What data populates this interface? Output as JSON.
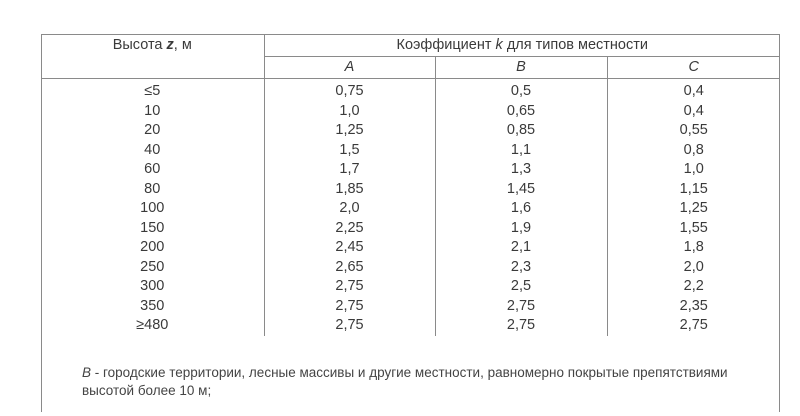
{
  "header": {
    "height_label_prefix": "Высота",
    "height_var": "z",
    "height_unit": ", м",
    "coef_label_prefix": "Коэффициент",
    "coef_var": "k",
    "coef_label_suffix": "для  типов местности",
    "terrain_types": [
      "A",
      "B",
      "C"
    ]
  },
  "rows": [
    {
      "height": "≤5",
      "a": "0,75",
      "b": "0,5",
      "c": "0,4"
    },
    {
      "height": "10",
      "a": "1,0",
      "b": "0,65",
      "c": "0,4"
    },
    {
      "height": "20",
      "a": "1,25",
      "b": "0,85",
      "c": "0,55"
    },
    {
      "height": "40",
      "a": "1,5",
      "b": "1,1",
      "c": "0,8"
    },
    {
      "height": "60",
      "a": "1,7",
      "b": "1,3",
      "c": "1,0"
    },
    {
      "height": "80",
      "a": "1,85",
      "b": "1,45",
      "c": "1,15"
    },
    {
      "height": "100",
      "a": "2,0",
      "b": "1,6",
      "c": "1,25"
    },
    {
      "height": "150",
      "a": "2,25",
      "b": "1,9",
      "c": "1,55"
    },
    {
      "height": "200",
      "a": "2,45",
      "b": "2,1",
      "c": "1,8"
    },
    {
      "height": "250",
      "a": "2,65",
      "b": "2,3",
      "c": "2,0"
    },
    {
      "height": "300",
      "a": "2,75",
      "b": "2,5",
      "c": "2,2"
    },
    {
      "height": "350",
      "a": "2,75",
      "b": "2,75",
      "c": "2,35"
    },
    {
      "height": "≥480",
      "a": "2,75",
      "b": "2,75",
      "c": "2,75"
    }
  ],
  "note": {
    "letter": "B",
    "line1": " - городские территории, лесные массивы и другие местности, равномерно покрытые препятствиями",
    "line2": "высотой более 10 м;"
  }
}
